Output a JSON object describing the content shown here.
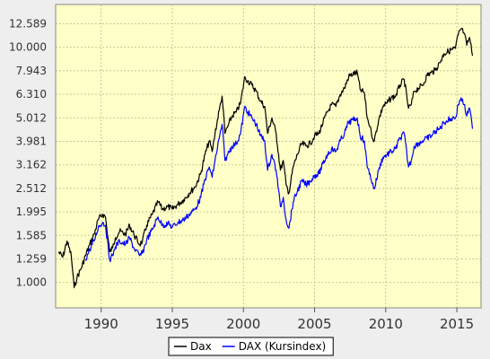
{
  "chart_data": {
    "type": "line",
    "title": "",
    "xlabel": "",
    "ylabel": "",
    "xlim": [
      1986.8,
      2016.7
    ],
    "ylim": [
      0.78,
      15.2
    ],
    "y_scale": "log",
    "grid": true,
    "legend_placement": "bottom-center",
    "y_ticks": [
      1.0,
      1.259,
      1.585,
      1.995,
      2.512,
      3.162,
      3.981,
      5.012,
      6.31,
      7.943,
      10.0,
      12.589
    ],
    "y_tick_labels": [
      "1.000",
      "1.259",
      "1.585",
      "1.995",
      "2.512",
      "3.162",
      "3.981",
      "5.012",
      "6.310",
      "7.943",
      "10.000",
      "12.589"
    ],
    "x_ticks": [
      1990,
      1995,
      2000,
      2005,
      2010,
      2015
    ],
    "x_tick_labels": [
      "1990",
      "1995",
      "2000",
      "2005",
      "2010",
      "2015"
    ],
    "series": [
      {
        "name": "Dax",
        "color": "#000000",
        "x": [
          1987.0,
          1987.3,
          1987.6,
          1987.9,
          1988.1,
          1988.3,
          1988.6,
          1988.9,
          1989.2,
          1989.5,
          1989.8,
          1990.1,
          1990.3,
          1990.6,
          1990.8,
          1991.0,
          1991.3,
          1991.7,
          1992.0,
          1992.3,
          1992.7,
          1992.9,
          1993.2,
          1993.6,
          1994.0,
          1994.3,
          1994.7,
          1995.0,
          1995.4,
          1995.8,
          1996.2,
          1996.6,
          1997.0,
          1997.3,
          1997.6,
          1997.8,
          1998.0,
          1998.3,
          1998.5,
          1998.7,
          1998.9,
          1999.2,
          1999.5,
          1999.8,
          2000.1,
          2000.3,
          2000.6,
          2000.9,
          2001.2,
          2001.5,
          2001.7,
          2002.0,
          2002.3,
          2002.6,
          2002.8,
          2003.0,
          2003.2,
          2003.5,
          2003.8,
          2004.1,
          2004.4,
          2004.7,
          2005.0,
          2005.3,
          2005.6,
          2005.9,
          2006.2,
          2006.5,
          2006.8,
          2007.1,
          2007.4,
          2007.7,
          2008.0,
          2008.2,
          2008.5,
          2008.7,
          2008.9,
          2009.0,
          2009.2,
          2009.5,
          2009.8,
          2010.1,
          2010.4,
          2010.7,
          2011.0,
          2011.3,
          2011.6,
          2011.8,
          2012.0,
          2012.3,
          2012.6,
          2012.9,
          2013.2,
          2013.5,
          2013.8,
          2014.1,
          2014.4,
          2014.7,
          2014.9,
          2015.1,
          2015.3,
          2015.5,
          2015.7,
          2015.9,
          2016.1
        ],
        "values": [
          1.35,
          1.28,
          1.5,
          1.3,
          0.95,
          1.05,
          1.15,
          1.3,
          1.45,
          1.6,
          1.85,
          1.95,
          1.9,
          1.35,
          1.4,
          1.55,
          1.65,
          1.6,
          1.75,
          1.6,
          1.45,
          1.5,
          1.75,
          1.95,
          2.2,
          2.05,
          2.1,
          2.05,
          2.15,
          2.25,
          2.4,
          2.55,
          2.9,
          3.5,
          4.0,
          3.6,
          4.3,
          5.4,
          6.2,
          4.3,
          4.6,
          5.1,
          5.3,
          5.8,
          7.5,
          7.2,
          6.9,
          6.5,
          5.9,
          5.6,
          4.3,
          5.0,
          4.3,
          3.0,
          3.3,
          2.6,
          2.4,
          3.1,
          3.5,
          3.9,
          3.8,
          3.9,
          4.2,
          4.3,
          4.8,
          5.3,
          5.7,
          5.6,
          6.3,
          6.7,
          7.5,
          7.7,
          7.8,
          6.6,
          6.4,
          5.0,
          4.6,
          4.3,
          4.0,
          4.9,
          5.6,
          5.8,
          6.1,
          6.2,
          6.9,
          7.3,
          5.5,
          5.7,
          6.5,
          6.7,
          6.9,
          7.6,
          7.8,
          8.0,
          8.6,
          9.4,
          9.6,
          9.8,
          9.9,
          11.3,
          12.0,
          11.5,
          10.2,
          11.0,
          9.2
        ]
      },
      {
        "name": "DAX (Kursindex)",
        "color": "#0000ff",
        "x": [
          1988.9,
          1989.2,
          1989.5,
          1989.8,
          1990.1,
          1990.3,
          1990.6,
          1990.8,
          1991.0,
          1991.3,
          1991.7,
          1992.0,
          1992.3,
          1992.7,
          1992.9,
          1993.2,
          1993.6,
          1994.0,
          1994.3,
          1994.7,
          1995.0,
          1995.4,
          1995.8,
          1996.2,
          1996.6,
          1997.0,
          1997.3,
          1997.6,
          1997.8,
          1998.0,
          1998.3,
          1998.5,
          1998.7,
          1998.9,
          1999.2,
          1999.5,
          1999.8,
          2000.1,
          2000.3,
          2000.6,
          2000.9,
          2001.2,
          2001.5,
          2001.7,
          2002.0,
          2002.3,
          2002.6,
          2002.8,
          2003.0,
          2003.2,
          2003.5,
          2003.8,
          2004.1,
          2004.4,
          2004.7,
          2005.0,
          2005.3,
          2005.6,
          2005.9,
          2006.2,
          2006.5,
          2006.8,
          2007.1,
          2007.4,
          2007.7,
          2008.0,
          2008.2,
          2008.5,
          2008.7,
          2008.9,
          2009.0,
          2009.2,
          2009.5,
          2009.8,
          2010.1,
          2010.4,
          2010.7,
          2011.0,
          2011.3,
          2011.6,
          2011.8,
          2012.0,
          2012.3,
          2012.6,
          2012.9,
          2013.2,
          2013.5,
          2013.8,
          2014.1,
          2014.4,
          2014.7,
          2014.9,
          2015.1,
          2015.3,
          2015.5,
          2015.7,
          2015.9,
          2016.1
        ],
        "values": [
          1.25,
          1.38,
          1.5,
          1.72,
          1.8,
          1.75,
          1.25,
          1.3,
          1.42,
          1.5,
          1.45,
          1.55,
          1.4,
          1.3,
          1.33,
          1.52,
          1.68,
          1.9,
          1.75,
          1.78,
          1.72,
          1.8,
          1.85,
          1.95,
          2.05,
          2.3,
          2.75,
          3.1,
          2.8,
          3.3,
          4.1,
          4.7,
          3.3,
          3.5,
          3.8,
          3.9,
          4.3,
          5.6,
          5.3,
          5.0,
          4.7,
          4.2,
          4.0,
          3.0,
          3.5,
          3.0,
          2.1,
          2.3,
          1.85,
          1.7,
          2.2,
          2.45,
          2.7,
          2.6,
          2.7,
          2.85,
          2.9,
          3.2,
          3.5,
          3.7,
          3.6,
          4.0,
          4.3,
          4.8,
          4.9,
          5.0,
          4.2,
          4.0,
          3.1,
          2.9,
          2.7,
          2.5,
          3.0,
          3.4,
          3.5,
          3.6,
          3.7,
          4.1,
          4.3,
          3.1,
          3.3,
          3.8,
          3.9,
          4.0,
          4.1,
          4.2,
          4.4,
          4.5,
          4.8,
          4.9,
          5.0,
          5.0,
          5.7,
          6.1,
          5.7,
          5.1,
          5.5,
          4.5
        ]
      }
    ]
  }
}
